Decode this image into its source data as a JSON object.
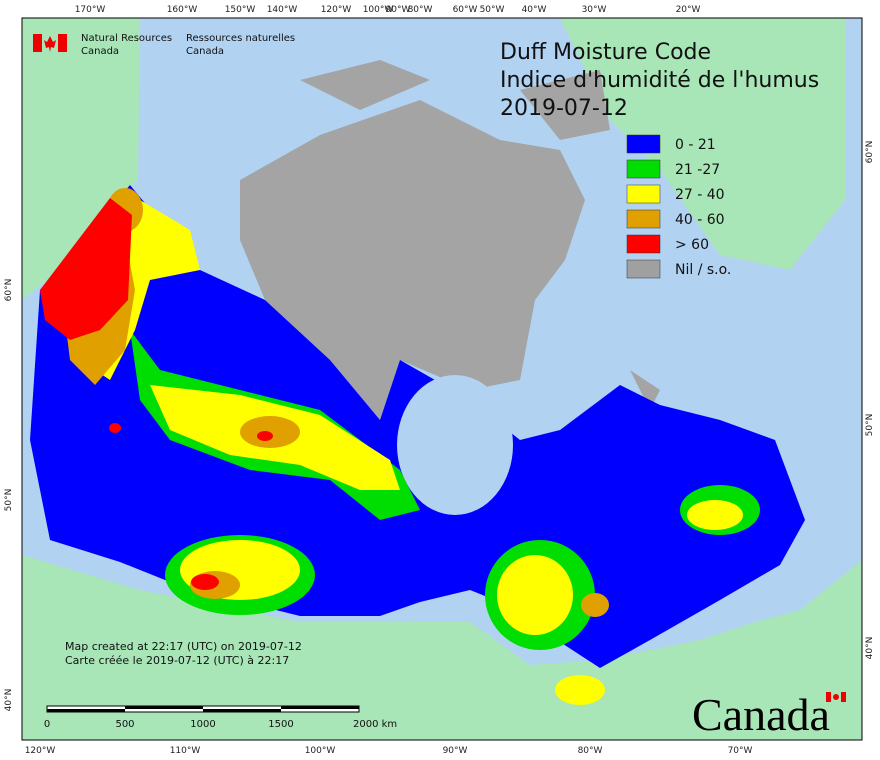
{
  "header": {
    "agency_en": [
      "Natural Resources",
      "Canada"
    ],
    "agency_fr": [
      "Ressources naturelles",
      "Canada"
    ]
  },
  "title": [
    "Duff Moisture Code",
    "Indice d'humidité de l'humus",
    "2019-07-12"
  ],
  "legend": [
    {
      "label": "0 - 21",
      "color": "#0000ff"
    },
    {
      "label": "21 -27",
      "color": "#00dd00"
    },
    {
      "label": "27 - 40",
      "color": "#ffff00"
    },
    {
      "label": "40 - 60",
      "color": "#e0a000"
    },
    {
      "label": "> 60",
      "color": "#ff0000"
    },
    {
      "label": "Nil / s.o.",
      "color": "#a0a0a0"
    }
  ],
  "graticule": {
    "top": [
      "170°W",
      "160°W",
      "150°W",
      "140°W",
      "120°W",
      "100°W",
      "90°W",
      "80°W",
      "60°W",
      "50°W",
      "40°W",
      "30°W",
      "20°W"
    ],
    "bottom": [
      "120°W",
      "110°W",
      "100°W",
      "90°W",
      "80°W",
      "70°W"
    ],
    "left": [
      "60°N",
      "50°N",
      "40°N"
    ],
    "right": [
      "60°N",
      "50°N",
      "40°N"
    ]
  },
  "footer": [
    "Map created at 22:17 (UTC) on 2019-07-12",
    "Carte créée le 2019-07-12 (UTC) à 22:17"
  ],
  "scale_bar": [
    "0",
    "500",
    "1000",
    "1500",
    "2000 km"
  ],
  "wordmark": "Canada"
}
